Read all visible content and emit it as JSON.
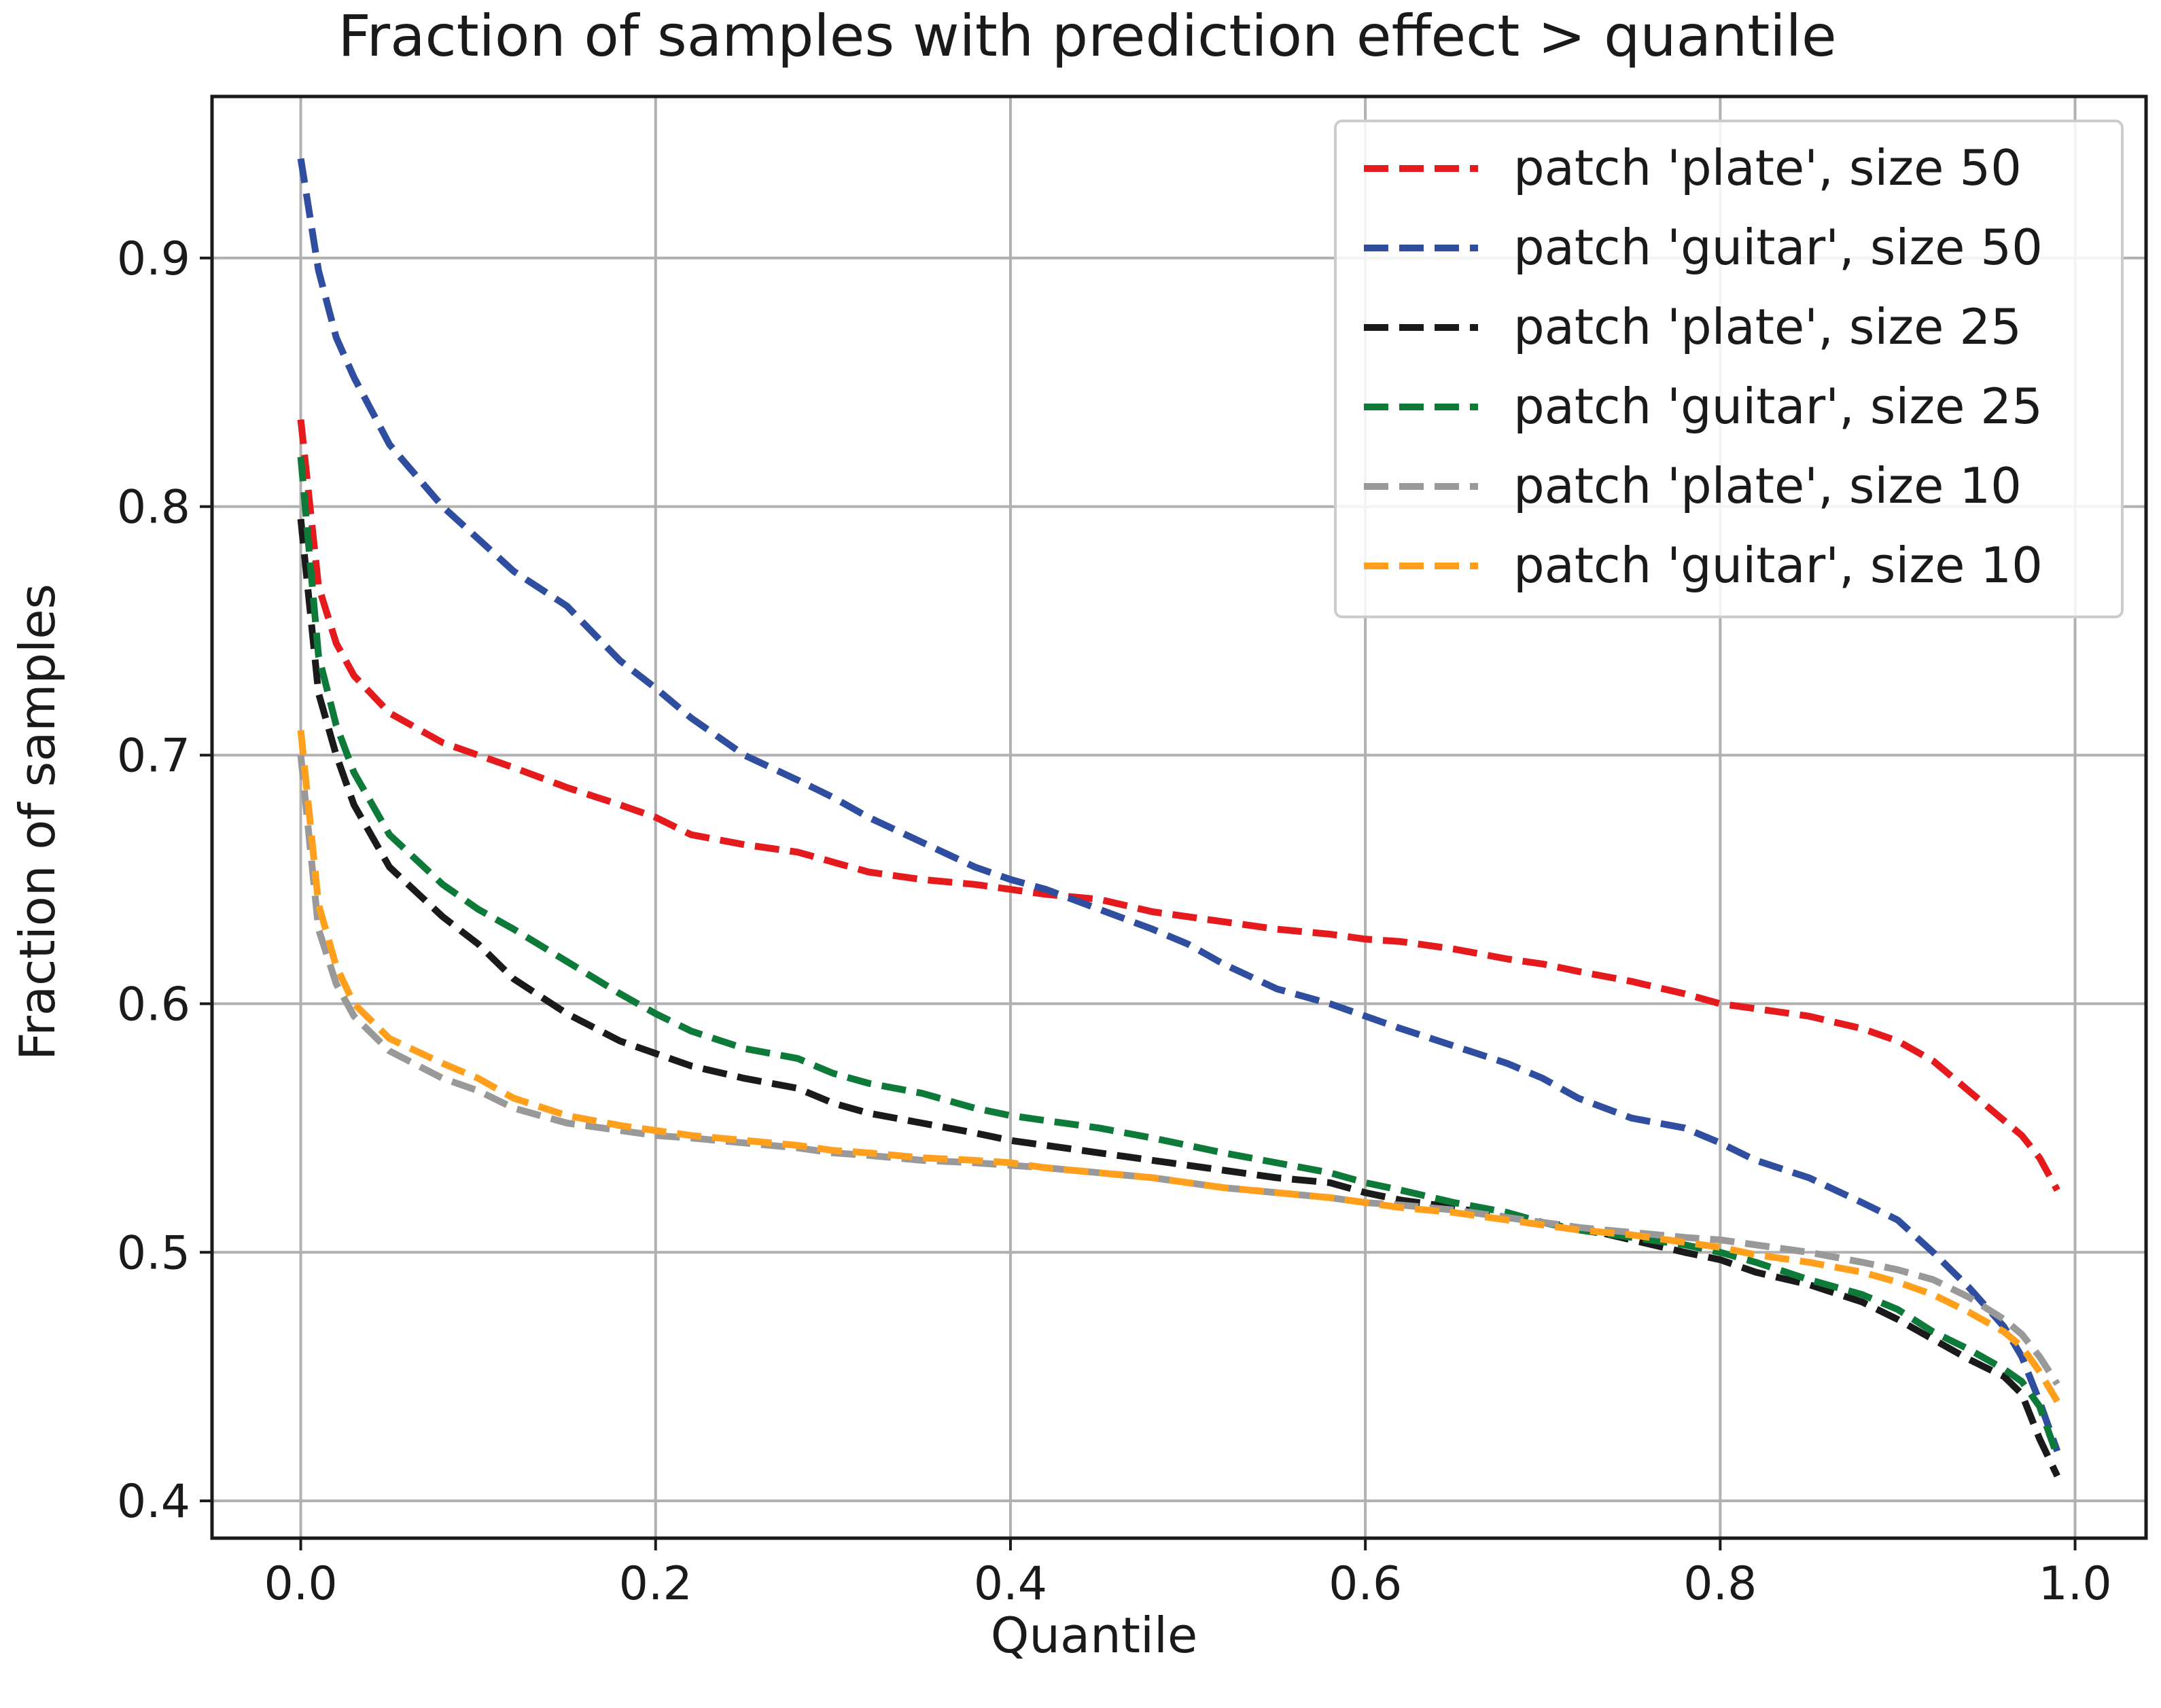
{
  "chart_data": {
    "type": "line",
    "title": "Fraction of samples with prediction effect > quantile",
    "xlabel": "Quantile",
    "ylabel": "Fraction of samples",
    "xlim": [
      -0.05,
      1.04
    ],
    "ylim": [
      0.385,
      0.965
    ],
    "xticks": [
      0.0,
      0.2,
      0.4,
      0.6,
      0.8,
      1.0
    ],
    "xtick_labels": [
      "0.0",
      "0.2",
      "0.4",
      "0.6",
      "0.8",
      "1.0"
    ],
    "yticks": [
      0.4,
      0.5,
      0.6,
      0.7,
      0.8,
      0.9
    ],
    "ytick_labels": [
      "0.4",
      "0.5",
      "0.6",
      "0.7",
      "0.8",
      "0.9"
    ],
    "grid": true,
    "legend_position": "top-right",
    "x": [
      0.0,
      0.01,
      0.02,
      0.03,
      0.05,
      0.08,
      0.1,
      0.12,
      0.15,
      0.18,
      0.2,
      0.22,
      0.25,
      0.28,
      0.3,
      0.32,
      0.35,
      0.38,
      0.4,
      0.42,
      0.45,
      0.48,
      0.5,
      0.52,
      0.55,
      0.58,
      0.6,
      0.62,
      0.65,
      0.68,
      0.7,
      0.72,
      0.75,
      0.78,
      0.8,
      0.82,
      0.85,
      0.88,
      0.9,
      0.92,
      0.94,
      0.96,
      0.97,
      0.98,
      0.99
    ],
    "series": [
      {
        "name": "patch 'plate', size 50",
        "color": "#e41a1c",
        "values": [
          0.835,
          0.768,
          0.745,
          0.732,
          0.717,
          0.705,
          0.7,
          0.695,
          0.687,
          0.68,
          0.675,
          0.668,
          0.664,
          0.661,
          0.657,
          0.653,
          0.65,
          0.648,
          0.646,
          0.644,
          0.642,
          0.637,
          0.635,
          0.633,
          0.63,
          0.628,
          0.626,
          0.625,
          0.622,
          0.618,
          0.616,
          0.613,
          0.609,
          0.604,
          0.6,
          0.598,
          0.595,
          0.59,
          0.585,
          0.577,
          0.565,
          0.553,
          0.547,
          0.538,
          0.525
        ]
      },
      {
        "name": "patch 'guitar', size 50",
        "color": "#2f4ea0",
        "values": [
          0.94,
          0.895,
          0.868,
          0.852,
          0.825,
          0.8,
          0.787,
          0.774,
          0.76,
          0.738,
          0.727,
          0.715,
          0.7,
          0.69,
          0.683,
          0.675,
          0.665,
          0.655,
          0.65,
          0.646,
          0.638,
          0.63,
          0.624,
          0.616,
          0.606,
          0.6,
          0.595,
          0.59,
          0.583,
          0.576,
          0.57,
          0.562,
          0.554,
          0.55,
          0.544,
          0.537,
          0.53,
          0.52,
          0.513,
          0.5,
          0.486,
          0.47,
          0.458,
          0.44,
          0.42
        ]
      },
      {
        "name": "patch 'plate', size 25",
        "color": "#1a1a1a",
        "values": [
          0.795,
          0.725,
          0.7,
          0.68,
          0.655,
          0.635,
          0.624,
          0.61,
          0.596,
          0.585,
          0.58,
          0.575,
          0.57,
          0.566,
          0.56,
          0.556,
          0.552,
          0.548,
          0.545,
          0.543,
          0.54,
          0.537,
          0.535,
          0.533,
          0.53,
          0.528,
          0.524,
          0.521,
          0.518,
          0.514,
          0.512,
          0.51,
          0.505,
          0.5,
          0.497,
          0.492,
          0.487,
          0.48,
          0.473,
          0.465,
          0.457,
          0.45,
          0.443,
          0.425,
          0.41
        ]
      },
      {
        "name": "patch 'guitar', size 25",
        "color": "#0e7a3a",
        "values": [
          0.82,
          0.74,
          0.712,
          0.693,
          0.668,
          0.648,
          0.638,
          0.63,
          0.617,
          0.604,
          0.596,
          0.589,
          0.582,
          0.578,
          0.572,
          0.568,
          0.564,
          0.558,
          0.555,
          0.553,
          0.55,
          0.546,
          0.543,
          0.54,
          0.536,
          0.532,
          0.528,
          0.525,
          0.52,
          0.516,
          0.512,
          0.509,
          0.506,
          0.503,
          0.5,
          0.496,
          0.489,
          0.483,
          0.477,
          0.468,
          0.461,
          0.453,
          0.448,
          0.438,
          0.418
        ]
      },
      {
        "name": "patch 'plate', size 10",
        "color": "#999999",
        "values": [
          0.7,
          0.63,
          0.608,
          0.595,
          0.581,
          0.57,
          0.565,
          0.558,
          0.552,
          0.549,
          0.547,
          0.546,
          0.544,
          0.542,
          0.54,
          0.539,
          0.537,
          0.536,
          0.535,
          0.534,
          0.532,
          0.53,
          0.528,
          0.526,
          0.524,
          0.522,
          0.52,
          0.519,
          0.517,
          0.514,
          0.512,
          0.51,
          0.508,
          0.506,
          0.505,
          0.503,
          0.5,
          0.496,
          0.493,
          0.489,
          0.482,
          0.473,
          0.467,
          0.458,
          0.447
        ]
      },
      {
        "name": "patch 'guitar', size 10",
        "color": "#ff9f1c",
        "values": [
          0.71,
          0.64,
          0.615,
          0.6,
          0.586,
          0.576,
          0.57,
          0.562,
          0.555,
          0.551,
          0.549,
          0.547,
          0.545,
          0.543,
          0.541,
          0.54,
          0.538,
          0.537,
          0.536,
          0.534,
          0.532,
          0.53,
          0.528,
          0.526,
          0.524,
          0.522,
          0.52,
          0.518,
          0.516,
          0.513,
          0.511,
          0.509,
          0.507,
          0.504,
          0.502,
          0.499,
          0.496,
          0.492,
          0.488,
          0.483,
          0.476,
          0.468,
          0.462,
          0.452,
          0.44
        ]
      }
    ]
  }
}
